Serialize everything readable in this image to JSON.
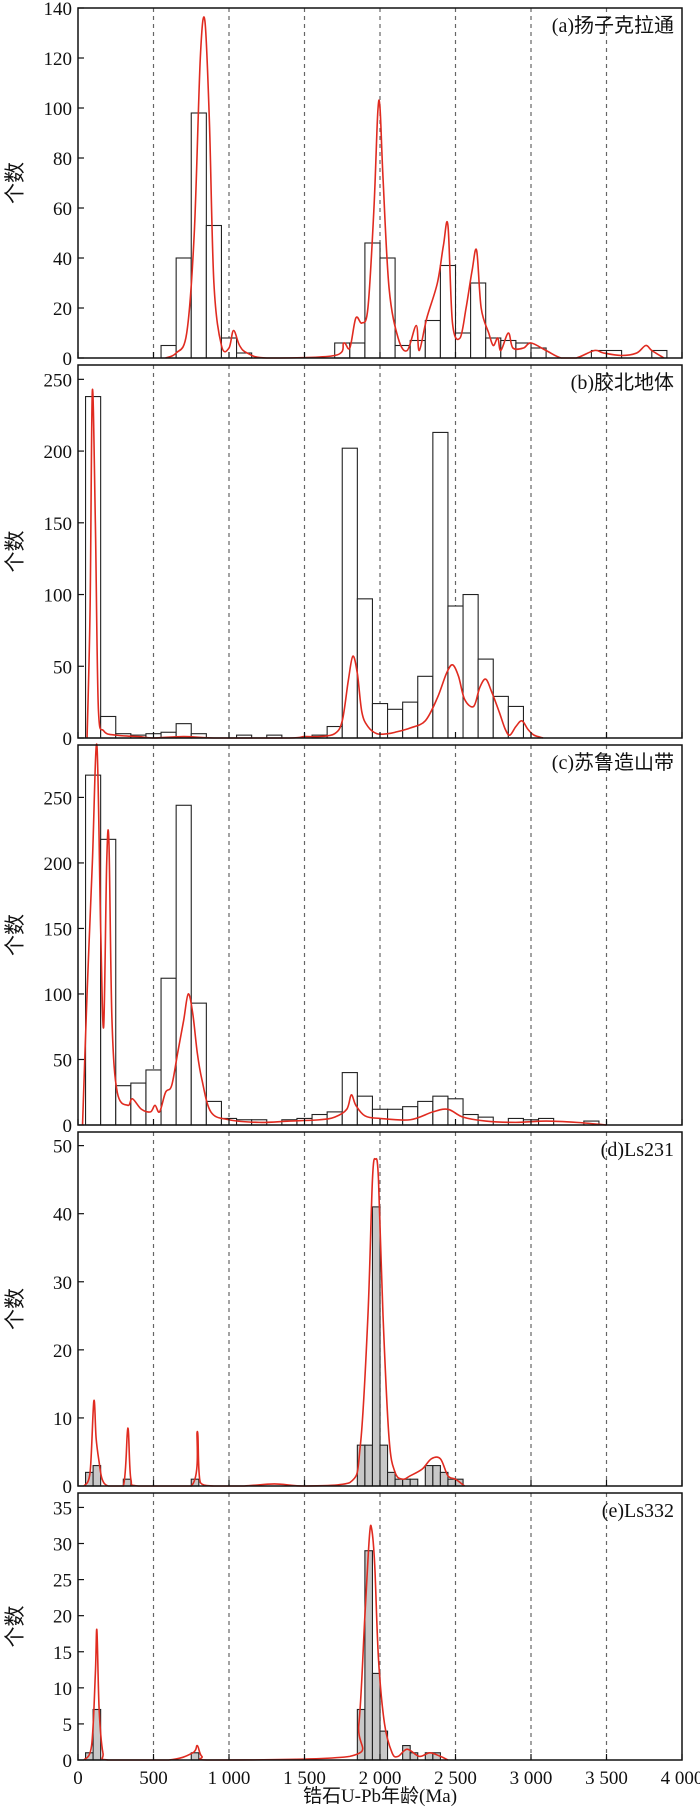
{
  "figure": {
    "xlabel": "锆石U-Pb年龄(Ma)",
    "x_ticks": [
      0,
      500,
      1000,
      1500,
      2000,
      2500,
      3000,
      3500,
      4000
    ],
    "x_tick_labels": [
      "0",
      "500",
      "1 000",
      "1 500",
      "2 000",
      "2 500",
      "3 000",
      "3 500",
      "4 000"
    ],
    "dashed_refs": [
      500,
      1000,
      1500,
      2000,
      2500,
      3000,
      3500
    ],
    "xlim": [
      0,
      4000
    ]
  },
  "colors": {
    "kde": "#e02b20",
    "bar_open": "#ffffff",
    "bar_filled": "#c8c8c8",
    "axis": "#111111",
    "ref": "#666666"
  },
  "chart_data": [
    {
      "type": "bar",
      "title": "(a)扬子克拉通",
      "ylabel": "个数",
      "ylim": [
        0,
        140
      ],
      "y_ticks": [
        0,
        20,
        40,
        60,
        80,
        100,
        120,
        140
      ],
      "fill": "open",
      "bin_width": 100,
      "bins": [
        [
          600,
          5
        ],
        [
          700,
          40
        ],
        [
          800,
          98
        ],
        [
          900,
          53
        ],
        [
          1000,
          8
        ],
        [
          1100,
          2
        ],
        [
          1750,
          6
        ],
        [
          1850,
          6
        ],
        [
          1950,
          46
        ],
        [
          2050,
          40
        ],
        [
          2150,
          5
        ],
        [
          2250,
          7
        ],
        [
          2350,
          15
        ],
        [
          2450,
          37
        ],
        [
          2550,
          10
        ],
        [
          2650,
          30
        ],
        [
          2750,
          8
        ],
        [
          2850,
          7
        ],
        [
          2950,
          6
        ],
        [
          3050,
          4
        ],
        [
          3450,
          3
        ],
        [
          3550,
          3
        ],
        [
          3850,
          3
        ]
      ],
      "kde": [
        [
          580,
          0
        ],
        [
          650,
          2
        ],
        [
          720,
          10
        ],
        [
          770,
          50
        ],
        [
          810,
          120
        ],
        [
          840,
          135
        ],
        [
          870,
          95
        ],
        [
          900,
          30
        ],
        [
          950,
          5
        ],
        [
          1000,
          4
        ],
        [
          1030,
          11
        ],
        [
          1070,
          5
        ],
        [
          1120,
          2
        ],
        [
          1250,
          0
        ],
        [
          1700,
          1
        ],
        [
          1760,
          6
        ],
        [
          1800,
          4
        ],
        [
          1840,
          16
        ],
        [
          1880,
          14
        ],
        [
          1920,
          20
        ],
        [
          1960,
          60
        ],
        [
          1985,
          98
        ],
        [
          2000,
          100
        ],
        [
          2020,
          72
        ],
        [
          2060,
          28
        ],
        [
          2120,
          8
        ],
        [
          2180,
          3
        ],
        [
          2240,
          13
        ],
        [
          2260,
          3
        ],
        [
          2310,
          16
        ],
        [
          2380,
          30
        ],
        [
          2420,
          45
        ],
        [
          2450,
          53
        ],
        [
          2480,
          14
        ],
        [
          2530,
          8
        ],
        [
          2570,
          20
        ],
        [
          2610,
          35
        ],
        [
          2640,
          43
        ],
        [
          2670,
          20
        ],
        [
          2720,
          10
        ],
        [
          2750,
          5
        ],
        [
          2780,
          8
        ],
        [
          2800,
          3
        ],
        [
          2850,
          10
        ],
        [
          2880,
          4
        ],
        [
          2950,
          4
        ],
        [
          3000,
          6
        ],
        [
          3100,
          3
        ],
        [
          3200,
          0
        ],
        [
          3300,
          0
        ],
        [
          3420,
          3
        ],
        [
          3480,
          2
        ],
        [
          3600,
          1
        ],
        [
          3700,
          2
        ],
        [
          3760,
          5
        ],
        [
          3800,
          3
        ],
        [
          3880,
          0
        ]
      ]
    },
    {
      "type": "bar",
      "title": "(b)胶北地体",
      "ylabel": "个数",
      "ylim": [
        0,
        260
      ],
      "y_ticks": [
        0,
        50,
        100,
        150,
        200,
        250
      ],
      "fill": "open",
      "bin_width": 100,
      "bins": [
        [
          100,
          238
        ],
        [
          200,
          15
        ],
        [
          300,
          3
        ],
        [
          400,
          2
        ],
        [
          500,
          3
        ],
        [
          600,
          4
        ],
        [
          700,
          10
        ],
        [
          800,
          3
        ],
        [
          1100,
          2
        ],
        [
          1300,
          2
        ],
        [
          1600,
          2
        ],
        [
          1700,
          8
        ],
        [
          1800,
          202
        ],
        [
          1900,
          97
        ],
        [
          2000,
          24
        ],
        [
          2100,
          20
        ],
        [
          2200,
          25
        ],
        [
          2300,
          43
        ],
        [
          2400,
          213
        ],
        [
          2500,
          92
        ],
        [
          2600,
          100
        ],
        [
          2700,
          55
        ],
        [
          2800,
          29
        ],
        [
          2900,
          22
        ]
      ],
      "kde": [
        [
          60,
          0
        ],
        [
          80,
          90
        ],
        [
          95,
          242
        ],
        [
          115,
          150
        ],
        [
          135,
          20
        ],
        [
          170,
          5
        ],
        [
          250,
          2
        ],
        [
          400,
          1
        ],
        [
          500,
          0
        ],
        [
          700,
          1
        ],
        [
          900,
          0
        ],
        [
          1400,
          0
        ],
        [
          1500,
          1
        ],
        [
          1600,
          1
        ],
        [
          1700,
          3
        ],
        [
          1750,
          12
        ],
        [
          1790,
          40
        ],
        [
          1820,
          57
        ],
        [
          1850,
          45
        ],
        [
          1880,
          18
        ],
        [
          1920,
          8
        ],
        [
          1980,
          3
        ],
        [
          2050,
          3
        ],
        [
          2100,
          4
        ],
        [
          2200,
          7
        ],
        [
          2300,
          12
        ],
        [
          2380,
          28
        ],
        [
          2440,
          45
        ],
        [
          2480,
          51
        ],
        [
          2520,
          43
        ],
        [
          2560,
          27
        ],
        [
          2620,
          22
        ],
        [
          2660,
          35
        ],
        [
          2700,
          41
        ],
        [
          2740,
          32
        ],
        [
          2790,
          18
        ],
        [
          2830,
          6
        ],
        [
          2860,
          2
        ],
        [
          2900,
          8
        ],
        [
          2940,
          12
        ],
        [
          2980,
          6
        ],
        [
          3020,
          2
        ],
        [
          3080,
          0
        ]
      ]
    },
    {
      "type": "bar",
      "title": "(c)苏鲁造山带",
      "ylabel": "个数",
      "ylim": [
        0,
        290
      ],
      "y_ticks": [
        0,
        50,
        100,
        150,
        200,
        250
      ],
      "fill": "open",
      "bin_width": 100,
      "bins": [
        [
          100,
          267
        ],
        [
          200,
          218
        ],
        [
          300,
          30
        ],
        [
          400,
          32
        ],
        [
          500,
          42
        ],
        [
          600,
          112
        ],
        [
          700,
          244
        ],
        [
          800,
          93
        ],
        [
          900,
          18
        ],
        [
          1000,
          5
        ],
        [
          1100,
          4
        ],
        [
          1200,
          4
        ],
        [
          1400,
          4
        ],
        [
          1500,
          5
        ],
        [
          1600,
          8
        ],
        [
          1700,
          10
        ],
        [
          1800,
          40
        ],
        [
          1900,
          22
        ],
        [
          2000,
          12
        ],
        [
          2100,
          12
        ],
        [
          2200,
          14
        ],
        [
          2300,
          18
        ],
        [
          2400,
          22
        ],
        [
          2500,
          20
        ],
        [
          2600,
          8
        ],
        [
          2700,
          6
        ],
        [
          2900,
          5
        ],
        [
          3000,
          4
        ],
        [
          3100,
          5
        ],
        [
          3400,
          3
        ]
      ],
      "kde": [
        [
          30,
          0
        ],
        [
          60,
          100
        ],
        [
          95,
          200
        ],
        [
          125,
          290
        ],
        [
          150,
          150
        ],
        [
          170,
          75
        ],
        [
          190,
          200
        ],
        [
          205,
          215
        ],
        [
          225,
          80
        ],
        [
          260,
          25
        ],
        [
          330,
          15
        ],
        [
          360,
          20
        ],
        [
          420,
          12
        ],
        [
          480,
          10
        ],
        [
          510,
          15
        ],
        [
          540,
          10
        ],
        [
          580,
          25
        ],
        [
          620,
          30
        ],
        [
          660,
          55
        ],
        [
          700,
          80
        ],
        [
          730,
          100
        ],
        [
          760,
          85
        ],
        [
          790,
          55
        ],
        [
          820,
          35
        ],
        [
          880,
          10
        ],
        [
          1000,
          4
        ],
        [
          1200,
          2
        ],
        [
          1400,
          3
        ],
        [
          1600,
          4
        ],
        [
          1700,
          6
        ],
        [
          1780,
          12
        ],
        [
          1810,
          23
        ],
        [
          1840,
          15
        ],
        [
          1900,
          7
        ],
        [
          2000,
          5
        ],
        [
          2200,
          4
        ],
        [
          2350,
          10
        ],
        [
          2450,
          12
        ],
        [
          2550,
          6
        ],
        [
          2700,
          3
        ],
        [
          2900,
          2
        ],
        [
          3100,
          3
        ],
        [
          3300,
          2
        ],
        [
          3500,
          0
        ]
      ]
    },
    {
      "type": "bar",
      "title": "(d)Ls231",
      "ylabel": "个数",
      "ylim": [
        0,
        52
      ],
      "y_ticks": [
        0,
        10,
        20,
        30,
        40,
        50
      ],
      "fill": "gray",
      "bin_width": 50,
      "bins": [
        [
          75,
          2
        ],
        [
          125,
          3
        ],
        [
          325,
          1
        ],
        [
          775,
          1
        ],
        [
          1875,
          6
        ],
        [
          1925,
          6
        ],
        [
          1975,
          41
        ],
        [
          2025,
          6
        ],
        [
          2075,
          2
        ],
        [
          2125,
          1
        ],
        [
          2175,
          1
        ],
        [
          2225,
          1
        ],
        [
          2325,
          3
        ],
        [
          2375,
          3
        ],
        [
          2425,
          2
        ],
        [
          2475,
          1
        ],
        [
          2525,
          1
        ]
      ],
      "kde": [
        [
          40,
          0
        ],
        [
          80,
          2
        ],
        [
          105,
          12.5
        ],
        [
          120,
          7
        ],
        [
          140,
          3.5
        ],
        [
          160,
          1
        ],
        [
          200,
          0
        ],
        [
          300,
          0
        ],
        [
          330,
          8.5
        ],
        [
          350,
          1
        ],
        [
          400,
          0
        ],
        [
          750,
          0
        ],
        [
          790,
          8
        ],
        [
          810,
          0.5
        ],
        [
          900,
          0
        ],
        [
          1100,
          0
        ],
        [
          1300,
          0.3
        ],
        [
          1500,
          0
        ],
        [
          1800,
          0.5
        ],
        [
          1870,
          6
        ],
        [
          1920,
          25
        ],
        [
          1950,
          45
        ],
        [
          1970,
          48
        ],
        [
          1990,
          45
        ],
        [
          2020,
          25
        ],
        [
          2060,
          7
        ],
        [
          2100,
          2
        ],
        [
          2150,
          1
        ],
        [
          2200,
          1.5
        ],
        [
          2280,
          2.5
        ],
        [
          2340,
          4
        ],
        [
          2400,
          4
        ],
        [
          2450,
          1.5
        ],
        [
          2500,
          1
        ],
        [
          2560,
          0
        ]
      ]
    },
    {
      "type": "bar",
      "title": "(e)Ls332",
      "ylabel": "个数",
      "ylim": [
        0,
        37
      ],
      "y_ticks": [
        0,
        5,
        10,
        15,
        20,
        25,
        30,
        35
      ],
      "fill": "gray",
      "bin_width": 50,
      "bins": [
        [
          75,
          1
        ],
        [
          125,
          7
        ],
        [
          775,
          1
        ],
        [
          1875,
          7
        ],
        [
          1925,
          29
        ],
        [
          1975,
          12
        ],
        [
          2025,
          4
        ],
        [
          2175,
          2
        ],
        [
          2225,
          1
        ],
        [
          2325,
          1
        ],
        [
          2375,
          1
        ]
      ],
      "kde": [
        [
          40,
          0
        ],
        [
          90,
          2
        ],
        [
          115,
          12
        ],
        [
          125,
          18
        ],
        [
          140,
          7
        ],
        [
          165,
          1
        ],
        [
          200,
          0
        ],
        [
          600,
          0
        ],
        [
          760,
          1
        ],
        [
          790,
          2
        ],
        [
          820,
          0.5
        ],
        [
          900,
          0
        ],
        [
          1800,
          0.5
        ],
        [
          1860,
          5
        ],
        [
          1900,
          20
        ],
        [
          1930,
          31
        ],
        [
          1945,
          32
        ],
        [
          1965,
          27
        ],
        [
          1990,
          14
        ],
        [
          2030,
          5
        ],
        [
          2080,
          1
        ],
        [
          2120,
          0.5
        ],
        [
          2180,
          1.5
        ],
        [
          2260,
          0.5
        ],
        [
          2330,
          1
        ],
        [
          2400,
          0.5
        ],
        [
          2450,
          0
        ]
      ]
    }
  ]
}
